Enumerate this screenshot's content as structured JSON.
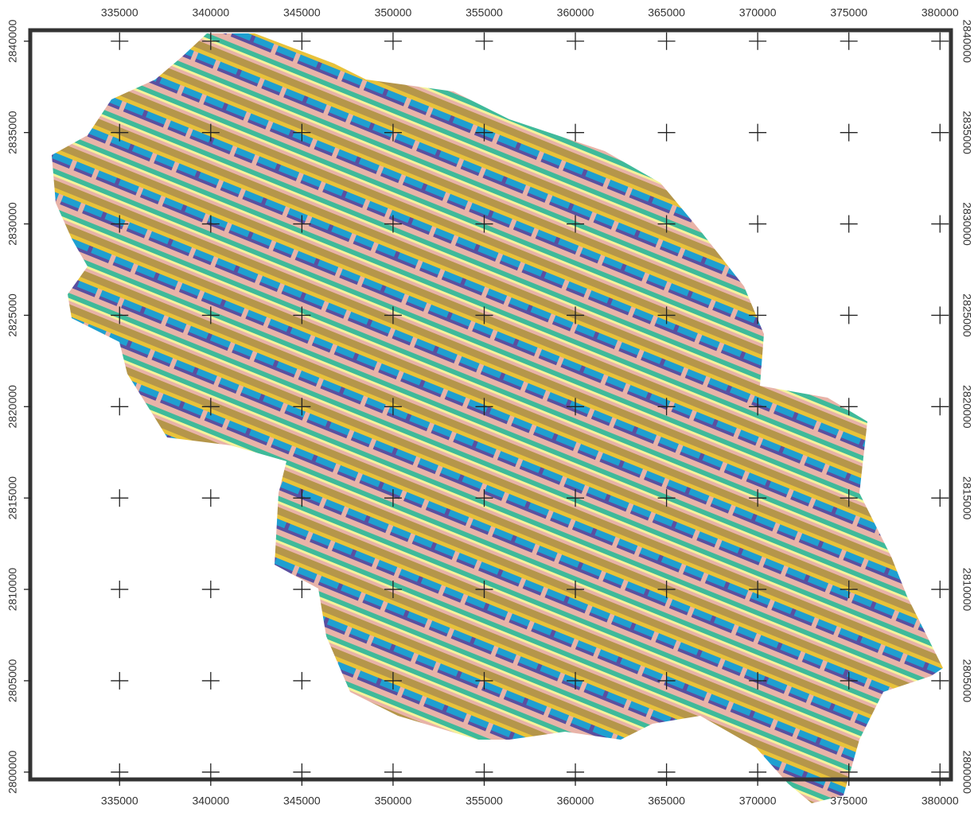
{
  "map": {
    "xticks": [
      335000,
      340000,
      345000,
      350000,
      355000,
      360000,
      365000,
      370000,
      375000,
      380000
    ],
    "yticks": [
      2800000,
      2805000,
      2810000,
      2815000,
      2820000,
      2825000,
      2830000,
      2835000,
      2840000
    ],
    "xlim": [
      330100,
      380600
    ],
    "ylim": [
      2799600,
      2840600
    ]
  }
}
